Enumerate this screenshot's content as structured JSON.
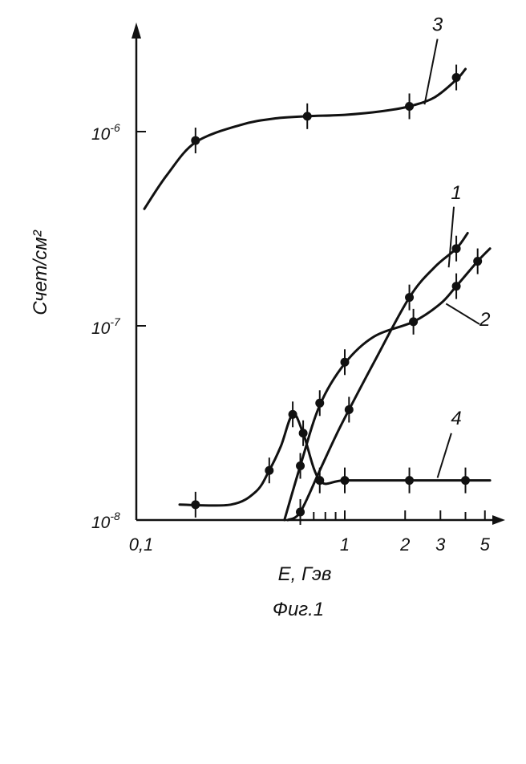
{
  "chart_data": {
    "type": "line",
    "xscale": "log",
    "yscale": "log",
    "xlabel": "E, Гэв",
    "ylabel": "Счет/см²",
    "caption": "Фиг.1",
    "xlim": [
      0.1,
      7
    ],
    "ylim": [
      1e-08,
      3.5e-06
    ],
    "x_ticks": [
      {
        "value": 0.1,
        "label": "0,1"
      },
      {
        "value": 1,
        "label": "1"
      },
      {
        "value": 2,
        "label": "2"
      },
      {
        "value": 3,
        "label": "3"
      },
      {
        "value": 5,
        "label": "5"
      }
    ],
    "x_minor_ticks": [
      0.7,
      0.8,
      0.9,
      4
    ],
    "y_ticks": [
      {
        "value": 1e-08,
        "base": "10",
        "exp": "-8"
      },
      {
        "value": 1e-07,
        "base": "10",
        "exp": "-7"
      },
      {
        "value": 1e-06,
        "base": "10",
        "exp": "-6"
      }
    ],
    "grid": false,
    "legend": "none",
    "series": [
      {
        "label": "3",
        "color": "#111111",
        "points": [
          [
            0.18,
            9e-07
          ],
          [
            0.65,
            1.2e-06
          ],
          [
            2.1,
            1.35e-06
          ],
          [
            3.6,
            1.9e-06
          ]
        ],
        "curve": [
          [
            0.1,
            4e-07
          ],
          [
            0.13,
            6e-07
          ],
          [
            0.18,
            8.8e-07
          ],
          [
            0.3,
            1.08e-06
          ],
          [
            0.45,
            1.17e-06
          ],
          [
            0.65,
            1.2e-06
          ],
          [
            1.0,
            1.22e-06
          ],
          [
            1.5,
            1.27e-06
          ],
          [
            2.1,
            1.35e-06
          ],
          [
            2.8,
            1.5e-06
          ],
          [
            3.6,
            1.85e-06
          ],
          [
            4.0,
            2.1e-06
          ]
        ],
        "label_at": [
          2.9,
          3.3e-06
        ]
      },
      {
        "label": "1",
        "color": "#111111",
        "points": [
          [
            0.6,
            1.1e-08
          ],
          [
            1.05,
            3.7e-08
          ],
          [
            2.1,
            1.4e-07
          ],
          [
            3.6,
            2.5e-07
          ]
        ],
        "curve": [
          [
            0.52,
            1e-08
          ],
          [
            0.6,
            1.1e-08
          ],
          [
            0.75,
            1.8e-08
          ],
          [
            0.9,
            2.7e-08
          ],
          [
            1.05,
            3.7e-08
          ],
          [
            1.4,
            6.5e-08
          ],
          [
            2.1,
            1.4e-07
          ],
          [
            2.8,
            2e-07
          ],
          [
            3.6,
            2.5e-07
          ],
          [
            4.1,
            3e-07
          ]
        ],
        "label_at": [
          3.6,
          4.5e-07
        ]
      },
      {
        "label": "2",
        "color": "#111111",
        "points": [
          [
            0.6,
            1.9e-08
          ],
          [
            0.75,
            4e-08
          ],
          [
            1.0,
            6.5e-08
          ],
          [
            2.2,
            1.05e-07
          ],
          [
            3.6,
            1.6e-07
          ],
          [
            4.6,
            2.15e-07
          ]
        ],
        "curve": [
          [
            0.5,
            1e-08
          ],
          [
            0.6,
            1.9e-08
          ],
          [
            0.75,
            3.9e-08
          ],
          [
            1.0,
            6.4e-08
          ],
          [
            1.4,
            8.8e-08
          ],
          [
            2.2,
            1.05e-07
          ],
          [
            3.0,
            1.3e-07
          ],
          [
            3.6,
            1.6e-07
          ],
          [
            4.6,
            2.15e-07
          ],
          [
            5.3,
            2.5e-07
          ]
        ],
        "label_at": [
          5.0,
          1e-07
        ]
      },
      {
        "label": "4",
        "color": "#111111",
        "points": [
          [
            0.18,
            1.2e-08
          ],
          [
            0.42,
            1.8e-08
          ],
          [
            0.55,
            3.5e-08
          ],
          [
            0.62,
            2.8e-08
          ],
          [
            0.75,
            1.6e-08
          ],
          [
            1.0,
            1.6e-08
          ],
          [
            2.1,
            1.6e-08
          ],
          [
            4.0,
            1.6e-08
          ]
        ],
        "curve": [
          [
            0.15,
            1.2e-08
          ],
          [
            0.27,
            1.2e-08
          ],
          [
            0.36,
            1.4e-08
          ],
          [
            0.42,
            1.8e-08
          ],
          [
            0.48,
            2.4e-08
          ],
          [
            0.55,
            3.5e-08
          ],
          [
            0.62,
            2.8e-08
          ],
          [
            0.75,
            1.6e-08
          ],
          [
            1.0,
            1.6e-08
          ],
          [
            2.1,
            1.6e-08
          ],
          [
            4.0,
            1.6e-08
          ],
          [
            5.3,
            1.6e-08
          ]
        ],
        "label_at": [
          3.6,
          3.1e-08
        ]
      }
    ]
  }
}
